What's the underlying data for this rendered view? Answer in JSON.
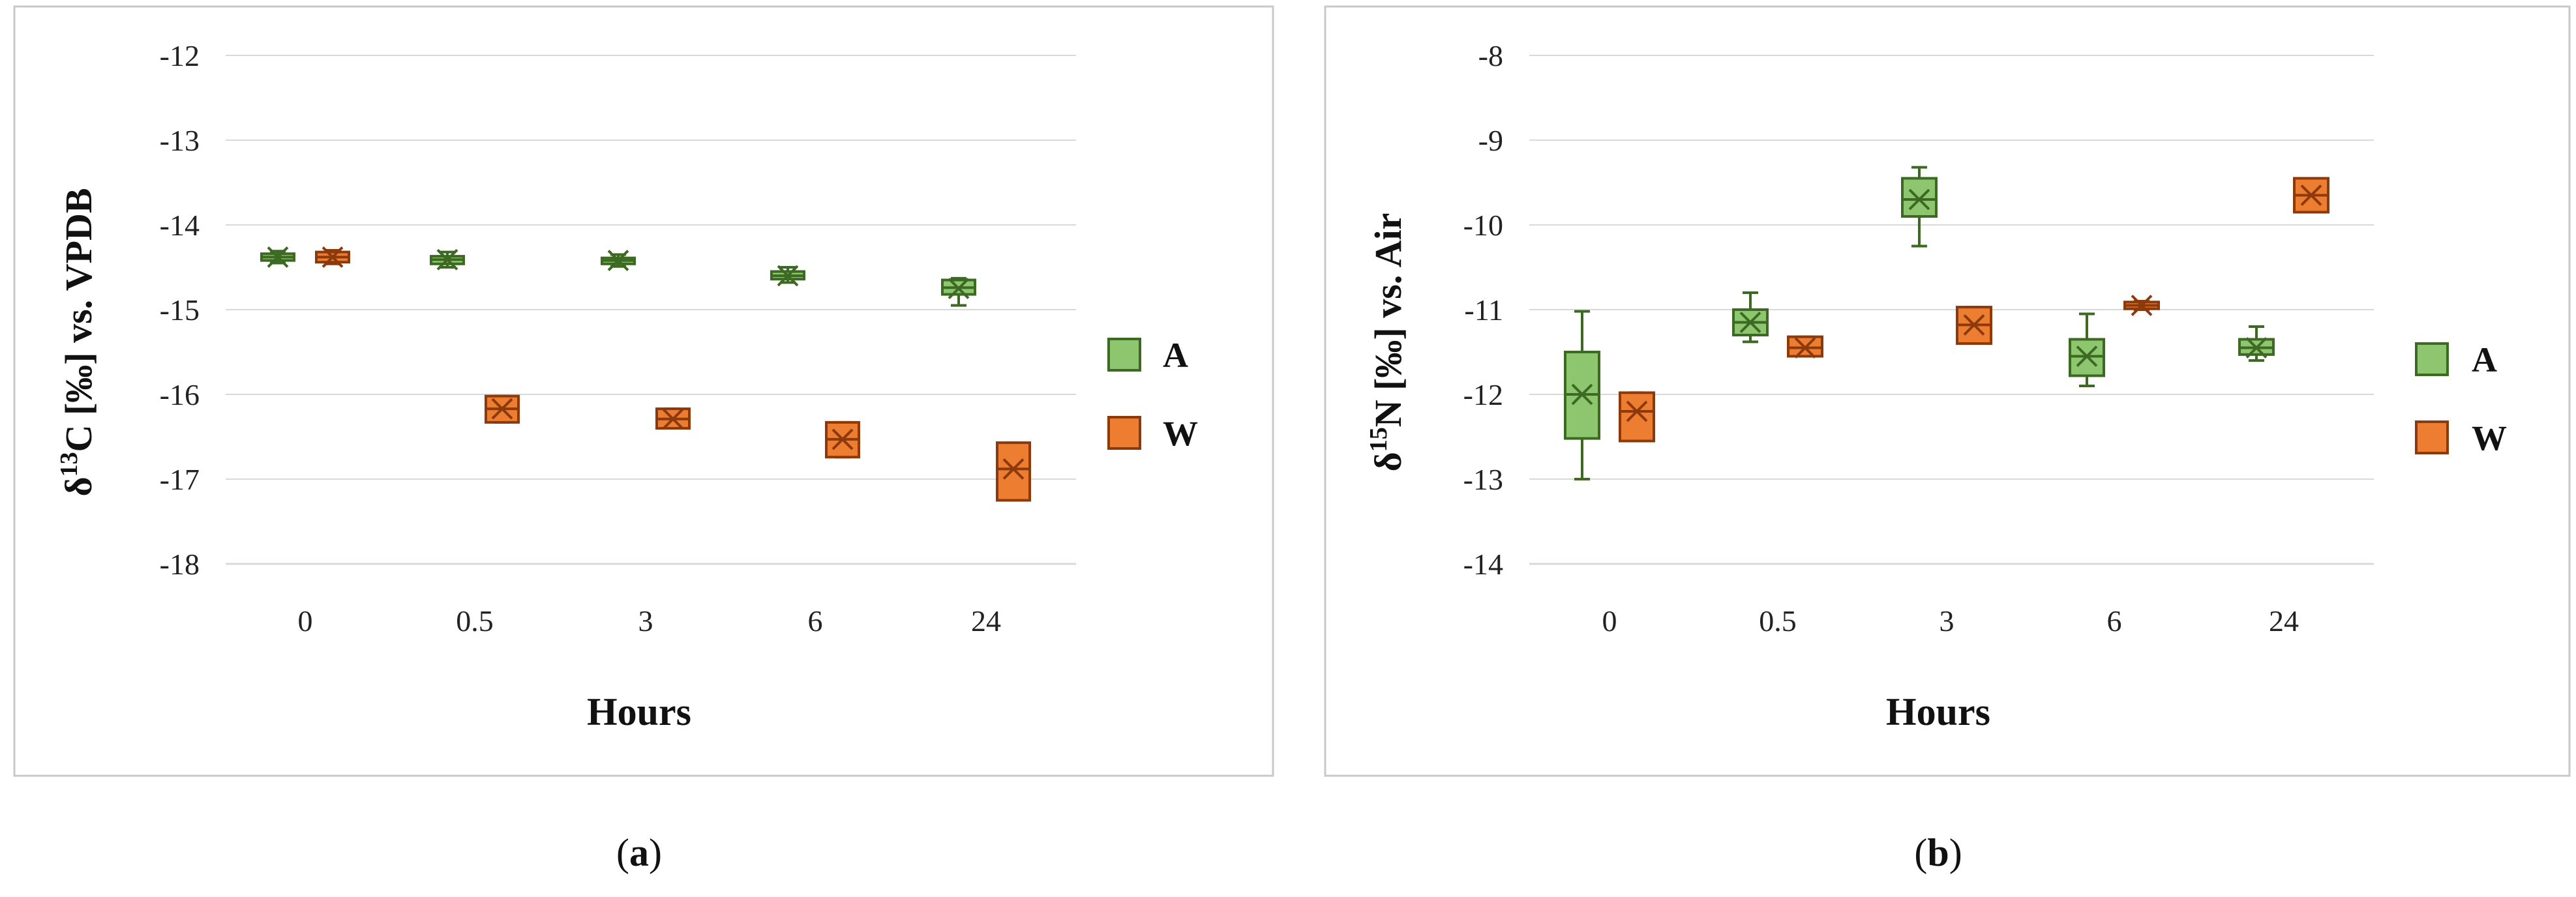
{
  "chart_data": [
    {
      "type": "boxplot",
      "panel_label": "a",
      "ylabel_parts": [
        "δ",
        "13",
        "C [‰] vs. VPDB"
      ],
      "xlabel": "Hours",
      "categories": [
        "0",
        "0.5",
        "3",
        "6",
        "24"
      ],
      "yticks": [
        "-12",
        "-13",
        "-14",
        "-15",
        "-16",
        "-17",
        "-18"
      ],
      "ylim": [
        -18,
        -12
      ],
      "grid": true,
      "legend_position": "right",
      "series": [
        {
          "name": "A",
          "color": "#8dc66f",
          "stroke": "#3c6a22",
          "boxes": [
            {
              "min": -14.45,
              "q1": -14.42,
              "median": -14.38,
              "mean": -14.38,
              "q3": -14.34,
              "max": -14.31
            },
            {
              "min": -14.5,
              "q1": -14.46,
              "median": -14.41,
              "mean": -14.41,
              "q3": -14.37,
              "max": -14.32
            },
            {
              "min": -14.49,
              "q1": -14.46,
              "median": -14.42,
              "mean": -14.42,
              "q3": -14.39,
              "max": -14.35
            },
            {
              "min": -14.68,
              "q1": -14.64,
              "median": -14.6,
              "mean": -14.6,
              "q3": -14.55,
              "max": -14.5
            },
            {
              "min": -14.95,
              "q1": -14.82,
              "median": -14.74,
              "mean": -14.75,
              "q3": -14.65,
              "max": -14.63
            }
          ]
        },
        {
          "name": "W",
          "color": "#ed7d31",
          "stroke": "#8c3a0c",
          "boxes": [
            {
              "min": -14.46,
              "q1": -14.44,
              "median": -14.38,
              "mean": -14.38,
              "q3": -14.32,
              "max": -14.3
            },
            {
              "min": -16.33,
              "q1": -16.33,
              "median": -16.17,
              "mean": -16.17,
              "q3": -16.02,
              "max": -16.02
            },
            {
              "min": -16.4,
              "q1": -16.4,
              "median": -16.29,
              "mean": -16.29,
              "q3": -16.17,
              "max": -16.17
            },
            {
              "min": -16.74,
              "q1": -16.74,
              "median": -16.53,
              "mean": -16.53,
              "q3": -16.33,
              "max": -16.33
            },
            {
              "min": -17.25,
              "q1": -17.25,
              "median": -16.88,
              "mean": -16.88,
              "q3": -16.57,
              "max": -16.57
            }
          ]
        }
      ]
    },
    {
      "type": "boxplot",
      "panel_label": "b",
      "ylabel_parts": [
        "δ",
        "15",
        "N [‰] vs. Air"
      ],
      "xlabel": "Hours",
      "categories": [
        "0",
        "0.5",
        "3",
        "6",
        "24"
      ],
      "yticks": [
        "-8",
        "-9",
        "-10",
        "-11",
        "-12",
        "-13",
        "-14"
      ],
      "ylim": [
        -14,
        -8
      ],
      "grid": true,
      "legend_position": "right",
      "series": [
        {
          "name": "A",
          "color": "#8dc66f",
          "stroke": "#3c6a22",
          "boxes": [
            {
              "min": -13.0,
              "q1": -12.52,
              "median": -12.0,
              "mean": -12.0,
              "q3": -11.5,
              "max": -11.02
            },
            {
              "min": -11.38,
              "q1": -11.3,
              "median": -11.15,
              "mean": -11.15,
              "q3": -11.0,
              "max": -10.8
            },
            {
              "min": -10.25,
              "q1": -9.9,
              "median": -9.7,
              "mean": -9.7,
              "q3": -9.45,
              "max": -9.32
            },
            {
              "min": -11.9,
              "q1": -11.78,
              "median": -11.55,
              "mean": -11.55,
              "q3": -11.35,
              "max": -11.05
            },
            {
              "min": -11.6,
              "q1": -11.53,
              "median": -11.45,
              "mean": -11.45,
              "q3": -11.35,
              "max": -11.2
            }
          ]
        },
        {
          "name": "W",
          "color": "#ed7d31",
          "stroke": "#8c3a0c",
          "boxes": [
            {
              "min": -12.55,
              "q1": -12.55,
              "median": -12.2,
              "mean": -12.2,
              "q3": -11.98,
              "max": -11.98
            },
            {
              "min": -11.55,
              "q1": -11.55,
              "median": -11.45,
              "mean": -11.45,
              "q3": -11.32,
              "max": -11.32
            },
            {
              "min": -11.4,
              "q1": -11.4,
              "median": -11.18,
              "mean": -11.18,
              "q3": -10.97,
              "max": -10.97
            },
            {
              "min": -11.0,
              "q1": -10.99,
              "median": -10.95,
              "mean": -10.95,
              "q3": -10.91,
              "max": -10.9
            },
            {
              "min": -9.85,
              "q1": -9.85,
              "median": -9.65,
              "mean": -9.65,
              "q3": -9.45,
              "max": -9.45
            }
          ]
        }
      ]
    }
  ],
  "captions": [
    "a",
    "b"
  ]
}
